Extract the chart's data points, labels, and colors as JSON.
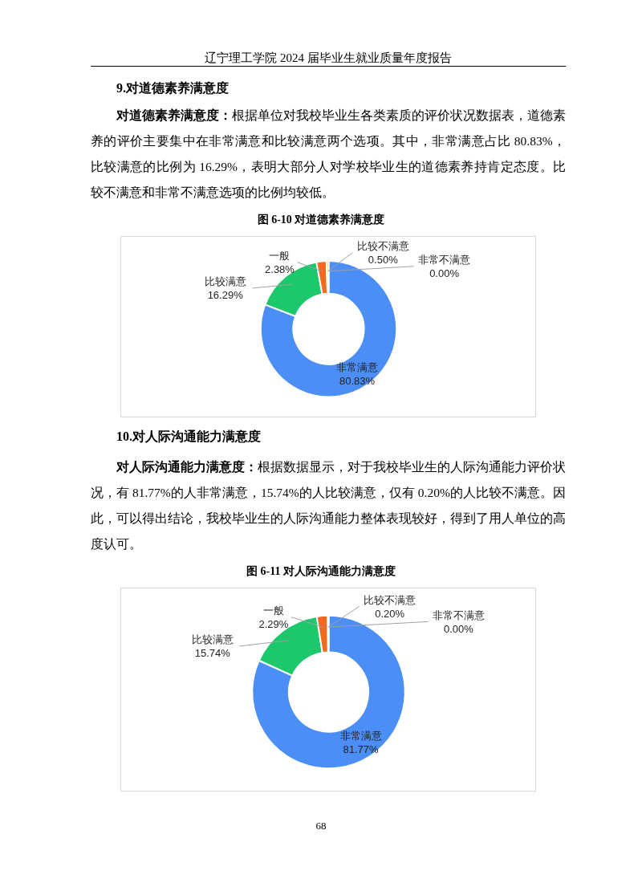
{
  "chart_data": [
    {
      "type": "donut",
      "title": "图 6-10 对道德素养满意度",
      "annotations": [
        "辽宁理工学院 2024 届毕业生就业质量年度报告",
        "9.对道德素养满意度",
        "对道德素养满意度：",
        "根据单位对我校毕业生各类素质的评价状况数据表，道德素养的评价主要集中在非常满意和比较满意两个选项。其中，非常满意占比 80.83%，比较满意的比例为 16.29%，表明大部分人对学校毕业生的道德素养持肯定态度。比较不满意和非常不满意选项的比例均较低。"
      ],
      "categories": [
        "非常满意",
        "比较满意",
        "一般",
        "比较不满意",
        "非常不满意"
      ],
      "values": [
        80.83,
        16.29,
        2.38,
        0.5,
        0.0
      ],
      "value_labels": [
        "80.83%",
        "16.29%",
        "2.38%",
        "0.50%",
        "0.00%"
      ],
      "colors": [
        "#4b8ef6",
        "#1dc86c",
        "#f26a1f",
        "#fbbf2a",
        "#bdbdbd"
      ]
    },
    {
      "type": "donut",
      "title": "图 6-11 对人际沟通能力满意度",
      "annotations": [
        "10.对人际沟通能力满意度",
        "对人际沟通能力满意度：",
        "根据数据显示，对于我校毕业生的人际沟通能力评价状况，有 81.77%的人非常满意，15.74%的人比较满意，仅有 0.20%的人比较不满意。因此，可以得出结论，我校毕业生的人际沟通能力整体表现较好，得到了用人单位的高度认可。",
        "68"
      ],
      "categories": [
        "非常满意",
        "比较满意",
        "一般",
        "比较不满意",
        "非常不满意"
      ],
      "values": [
        81.77,
        15.74,
        2.29,
        0.2,
        0.0
      ],
      "value_labels": [
        "81.77%",
        "15.74%",
        "2.29%",
        "0.20%",
        "0.00%"
      ],
      "colors": [
        "#4b8ef6",
        "#1dc86c",
        "#f26a1f",
        "#fbbf2a",
        "#bdbdbd"
      ]
    }
  ]
}
